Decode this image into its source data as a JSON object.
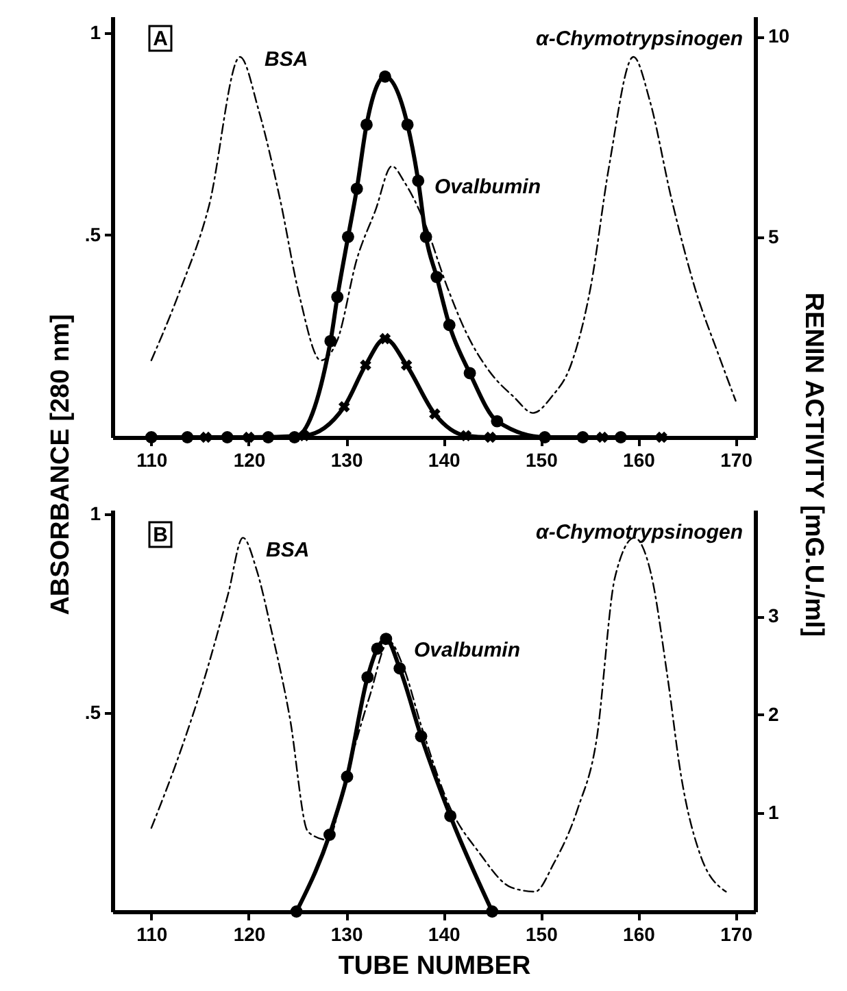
{
  "chart_data": [
    {
      "type": "line",
      "ylabel": "ABSORBANCE [280 nm]",
      "y2label": "RENIN ACTIVITY [mG.U./ml]",
      "xlim": [
        106,
        172
      ],
      "xticks": [
        110,
        120,
        130,
        140,
        150,
        160,
        170
      ],
      "ylim": [
        0,
        1.04
      ],
      "yticks": [
        {
          "value": 0.5,
          "label": ".5"
        },
        1
      ],
      "y2lim": [
        0,
        10.5
      ],
      "y2ticks": [
        5,
        10
      ],
      "grid": false,
      "annotations": [
        "A",
        "BSA",
        "α-Chymotrypsinogen",
        "Ovalbumin"
      ],
      "series": [
        {
          "color": "#000000",
          "line_style": "dashed",
          "marker": "none",
          "x": [
            110,
            112.9,
            115.9,
            119.1,
            121.0,
            123.2,
            125.2,
            127.4,
            129.1,
            131.1,
            133.0,
            134.7,
            136.0,
            137.9,
            140.4,
            142.3,
            144.8,
            147.2,
            149.2,
            151.1,
            153.1,
            155.1,
            157.0,
            159.5,
            161.2,
            163.4,
            165.8,
            168.3,
            170
          ],
          "values": [
            0.19,
            0.36,
            0.57,
            0.94,
            0.81,
            0.59,
            0.35,
            0.19,
            0.24,
            0.44,
            0.56,
            0.67,
            0.63,
            0.54,
            0.37,
            0.26,
            0.16,
            0.1,
            0.06,
            0.1,
            0.18,
            0.37,
            0.67,
            0.94,
            0.83,
            0.59,
            0.37,
            0.2,
            0.09
          ]
        },
        {
          "color": "#000000",
          "line_style": "solid",
          "marker": "cross",
          "axis": "y2",
          "x": [
            110,
            115.6,
            120,
            125.7,
            129.8,
            132.0,
            134.0,
            136.2,
            139.1,
            142.3,
            144.8,
            156.3,
            162.4
          ],
          "values": [
            0,
            0,
            0,
            0.04,
            0.76,
            1.8,
            2.46,
            1.8,
            0.58,
            0.04,
            0,
            0,
            0
          ]
        },
        {
          "color": "#000000",
          "line_style": "solid",
          "marker": "circle",
          "axis": "y2",
          "x": [
            110,
            113.7,
            117.8,
            122,
            124.7,
            128.4,
            129.1,
            130.2,
            131.1,
            132.1,
            134.0,
            136.3,
            137.4,
            138.2,
            139.3,
            140.6,
            142.7,
            145.5,
            150.4,
            154.3,
            158.2
          ],
          "values": [
            0,
            0,
            0,
            0,
            0,
            2.4,
            3.5,
            5.0,
            6.2,
            7.8,
            9.0,
            7.8,
            6.4,
            5.0,
            4.0,
            2.8,
            1.6,
            0.4,
            0,
            0,
            0
          ]
        }
      ]
    },
    {
      "type": "line",
      "xlabel": "TUBE NUMBER",
      "xlim": [
        106,
        172
      ],
      "xticks": [
        110,
        120,
        130,
        140,
        150,
        160,
        170
      ],
      "ylim": [
        0,
        1.01
      ],
      "yticks": [
        {
          "value": 0.5,
          "label": ".5"
        },
        1
      ],
      "y2lim": [
        0,
        4.08
      ],
      "y2ticks": [
        1,
        2,
        3
      ],
      "grid": false,
      "annotations": [
        "B",
        "BSA",
        "α-Chymotrypsinogen",
        "Ovalbumin"
      ],
      "series": [
        {
          "color": "#000000",
          "line_style": "dashed",
          "marker": "none",
          "x": [
            110,
            112.8,
            115.5,
            117.9,
            119.4,
            120.8,
            122.3,
            124.2,
            126.1,
            128.1,
            130.0,
            132.4,
            134.4,
            135.8,
            137.8,
            140.7,
            143.6,
            147.0,
            149.4,
            151.3,
            153.8,
            155.7,
            157.6,
            159.6,
            161.3,
            163.0,
            164.4,
            166.4,
            169.0
          ],
          "values": [
            0.21,
            0.39,
            0.59,
            0.8,
            0.94,
            0.86,
            0.71,
            0.49,
            0.2,
            0.18,
            0.34,
            0.54,
            0.68,
            0.62,
            0.46,
            0.26,
            0.15,
            0.06,
            0.05,
            0.12,
            0.26,
            0.43,
            0.84,
            0.94,
            0.85,
            0.59,
            0.34,
            0.14,
            0.05
          ]
        },
        {
          "color": "#000000",
          "line_style": "solid",
          "marker": "circle",
          "axis": "y2",
          "x": [
            124.9,
            128.3,
            130.1,
            132.2,
            133.2,
            134.1,
            135.5,
            137.7,
            140.7,
            145.0
          ],
          "values": [
            0,
            0.78,
            1.37,
            2.38,
            2.67,
            2.77,
            2.47,
            1.78,
            0.97,
            0
          ]
        }
      ]
    }
  ]
}
